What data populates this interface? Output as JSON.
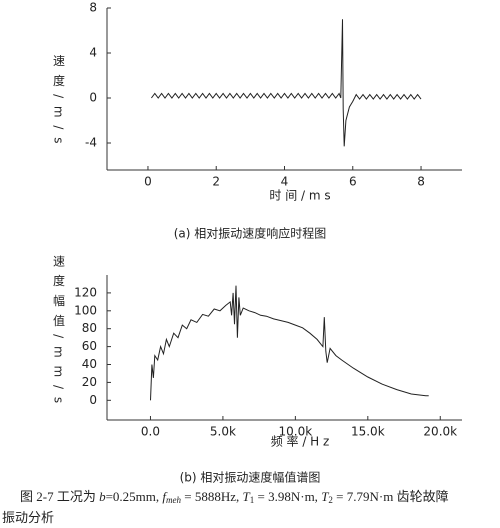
{
  "chart_data": [
    {
      "type": "line",
      "y_label": "速 度 / m / s",
      "x_label": "时 间 / m s",
      "caption": "(a) 相对振动速度响应时程图",
      "xlim": [
        -1.2,
        9.2
      ],
      "ylim": [
        -6.4,
        8
      ],
      "xticks": [
        0,
        2,
        4,
        6,
        8
      ],
      "yticks": [
        -4,
        0,
        4,
        8
      ],
      "color": "#222222",
      "x": [
        0.1,
        0.2,
        0.3,
        0.4,
        0.5,
        0.6,
        0.7,
        0.8,
        0.9,
        1,
        1.1,
        1.2,
        1.3,
        1.4,
        1.5,
        1.6,
        1.7,
        1.8,
        1.9,
        2,
        2.1,
        2.2,
        2.3,
        2.4,
        2.5,
        2.6,
        2.7,
        2.8,
        2.9,
        3,
        3.1,
        3.2,
        3.3,
        3.4,
        3.5,
        3.6,
        3.7,
        3.8,
        3.9,
        4,
        4.1,
        4.2,
        4.3,
        4.4,
        4.5,
        4.6,
        4.7,
        4.8,
        4.9,
        5,
        5.1,
        5.2,
        5.3,
        5.4,
        5.5,
        5.6,
        5.65,
        5.7,
        5.72,
        5.75,
        5.8,
        5.9,
        6,
        6.1,
        6.2,
        6.3,
        6.4,
        6.5,
        6.6,
        6.7,
        6.8,
        6.9,
        7,
        7.1,
        7.2,
        7.3,
        7.4,
        7.5,
        7.6,
        7.7,
        7.8,
        7.9,
        8
      ],
      "values": [
        0,
        0.4,
        0,
        0.4,
        0,
        0.4,
        0,
        0.4,
        0,
        0.4,
        0,
        0.4,
        0,
        0.4,
        0,
        0.4,
        0,
        0.4,
        0,
        0.4,
        0,
        0.4,
        0,
        0.4,
        0,
        0.4,
        0,
        0.4,
        0,
        0.4,
        0,
        0.4,
        0,
        0.4,
        0,
        0.4,
        0,
        0.4,
        0,
        0.4,
        0,
        0.4,
        0,
        0.4,
        0,
        0.4,
        0,
        0.4,
        0,
        0.4,
        0,
        0.4,
        0,
        0.4,
        0,
        0.4,
        0,
        7,
        -1,
        -4.3,
        -2,
        -0.8,
        -0.3,
        0.3,
        -0.1,
        0.3,
        -0.1,
        0.3,
        -0.1,
        0.3,
        -0.1,
        0.3,
        -0.1,
        0.3,
        -0.1,
        0.3,
        -0.1,
        0.3,
        -0.1,
        0.3,
        -0.1,
        0.3,
        -0.1
      ]
    },
    {
      "type": "line",
      "y_label": "速 度 幅 值 / m m / s",
      "x_label": "频 率 / H z",
      "caption": "(b) 相对振动速度幅值谱图",
      "xlim": [
        -3000,
        21500
      ],
      "ylim": [
        -22,
        140
      ],
      "xticks": [
        {
          "value": 0,
          "label": "0.0"
        },
        {
          "value": 5000,
          "label": "5.0k"
        },
        {
          "value": 10000,
          "label": "10.0k"
        },
        {
          "value": 15000,
          "label": "15.0k"
        },
        {
          "value": 20000,
          "label": "20.0k"
        }
      ],
      "yticks": [
        0,
        20,
        40,
        60,
        80,
        100,
        120
      ],
      "color": "#222222",
      "x": [
        0,
        100,
        200,
        300,
        500,
        700,
        900,
        1100,
        1300,
        1600,
        1900,
        2200,
        2500,
        2800,
        3200,
        3600,
        4000,
        4400,
        4800,
        5200,
        5500,
        5600,
        5700,
        5800,
        5900,
        6000,
        6100,
        6200,
        6400,
        6800,
        7200,
        7600,
        8000,
        8500,
        9000,
        9500,
        10000,
        10500,
        11000,
        11500,
        11800,
        11900,
        12000,
        12100,
        12200,
        12400,
        12800,
        13200,
        14000,
        15000,
        16000,
        17000,
        18000,
        19000,
        19200
      ],
      "values": [
        0,
        40,
        25,
        50,
        45,
        60,
        52,
        68,
        60,
        75,
        70,
        84,
        80,
        90,
        87,
        96,
        94,
        102,
        100,
        106,
        110,
        95,
        120,
        85,
        128,
        70,
        115,
        95,
        103,
        100,
        98,
        95,
        94,
        91,
        89,
        87,
        84,
        81,
        75,
        68,
        62,
        60,
        93,
        55,
        42,
        58,
        50,
        45,
        36,
        26,
        18,
        12,
        7,
        5,
        5
      ]
    }
  ],
  "figure_caption": [
    "图 2-7 工况为 ",
    "b",
    "=0.25mm, ",
    "f",
    "meh",
    " = 5888Hz, ",
    "T",
    "1",
    " = 3.98N·m, ",
    "T",
    "2",
    " = 7.79N·m 齿轮故障"
  ],
  "figure_caption_line2": "振动分析"
}
